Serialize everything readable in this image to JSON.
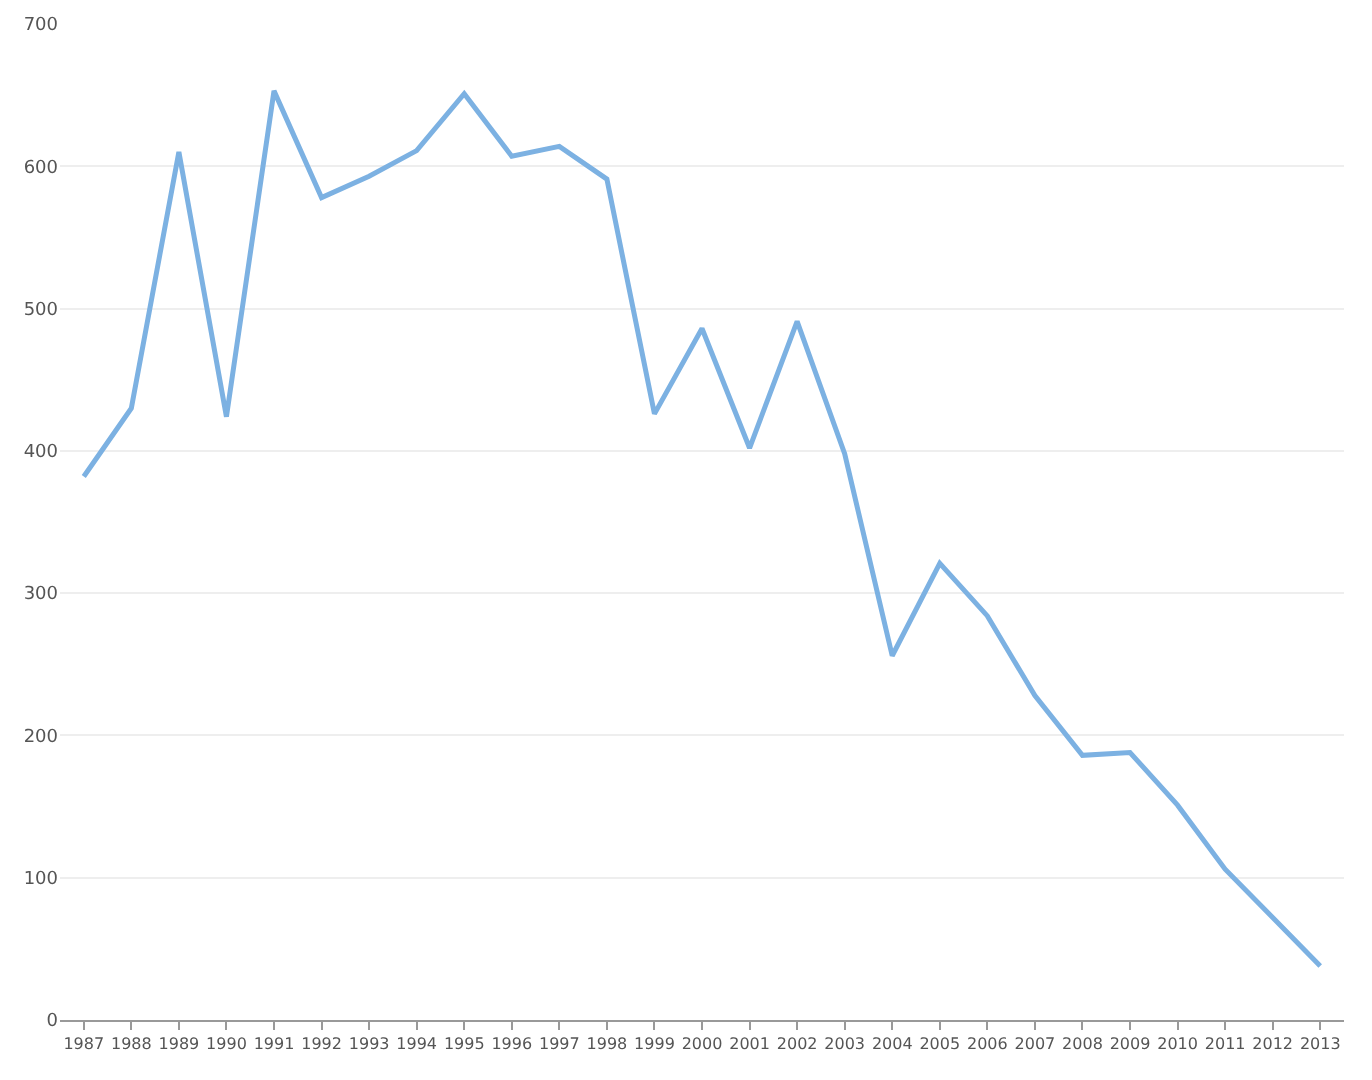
{
  "chart_data": {
    "type": "line",
    "categories": [
      "1987",
      "1988",
      "1989",
      "1990",
      "1991",
      "1992",
      "1993",
      "1994",
      "1995",
      "1996",
      "1997",
      "1998",
      "1999",
      "2000",
      "2001",
      "2002",
      "2003",
      "2004",
      "2005",
      "2006",
      "2007",
      "2008",
      "2009",
      "2010",
      "2011",
      "2012",
      "2013"
    ],
    "series": [
      {
        "color": "#7cb1e2",
        "values": [
          382,
          430,
          610,
          424,
          653,
          578,
          593,
          611,
          651,
          607,
          614,
          591,
          426,
          486,
          402,
          491,
          398,
          256,
          321,
          284,
          228,
          186,
          188,
          151,
          106,
          72,
          38
        ]
      }
    ],
    "ylim": [
      0,
      700
    ],
    "yticks": [
      0,
      100,
      200,
      300,
      400,
      500,
      600,
      700
    ],
    "grid": "y",
    "legend": false,
    "marker": "none",
    "line_style": "solid"
  }
}
